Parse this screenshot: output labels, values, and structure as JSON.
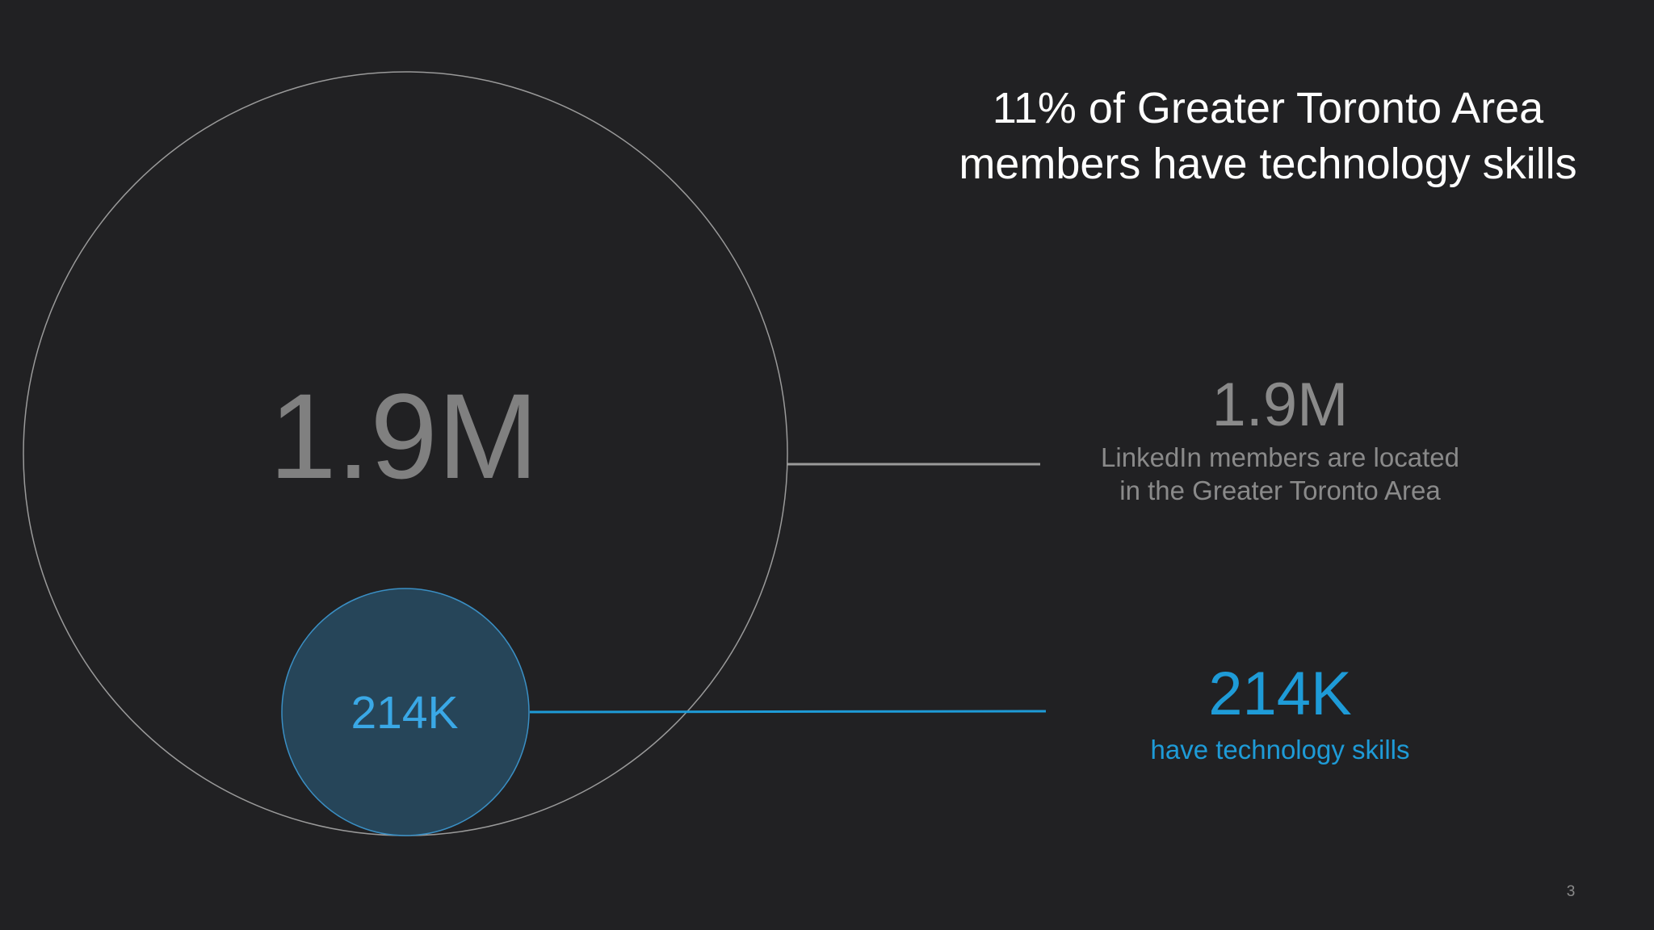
{
  "slide": {
    "headline_line1": "11% of Greater Toronto Area",
    "headline_line2": "members have technology skills",
    "page_number": "3"
  },
  "diagram": {
    "outer_circle_label": "1.9M",
    "inner_circle_label": "214K"
  },
  "stats": [
    {
      "value": "1.9M",
      "caption_line1": "LinkedIn members are located",
      "caption_line2": "in the Greater Toronto Area"
    },
    {
      "value": "214K",
      "caption_line1": "have technology skills"
    }
  ],
  "colors": {
    "background": "#212123",
    "headline": "#ffffff",
    "muted_text": "#8a8a8a",
    "accent_blue": "#1e9bd7",
    "inner_circle_fill": "#264559",
    "outer_circle_stroke": "#9a9a9a"
  }
}
